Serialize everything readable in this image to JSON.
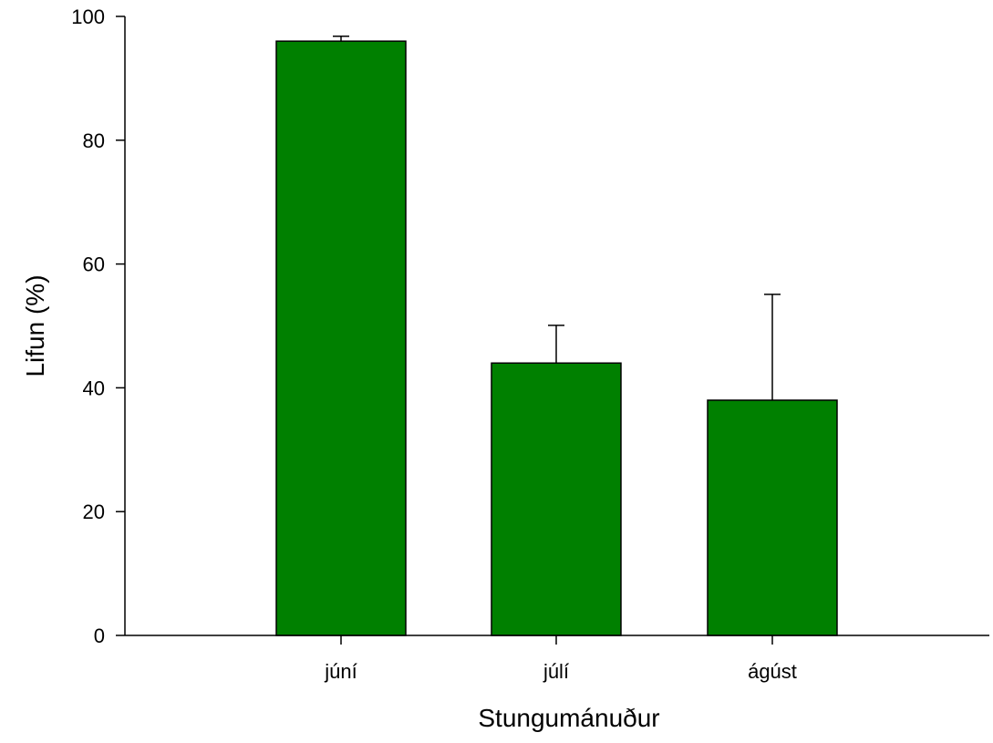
{
  "chart_data": {
    "type": "bar",
    "title": "",
    "xlabel": "Stungumánuður",
    "ylabel": "Lifun (%)",
    "categories": [
      "júní",
      "júlí",
      "ágúst"
    ],
    "values": [
      96,
      44,
      38
    ],
    "error_upper": [
      96.8,
      50.1,
      55.1
    ],
    "ylim": [
      0,
      100
    ],
    "yticks": [
      0,
      20,
      40,
      60,
      80,
      100
    ],
    "grid": false,
    "legend": "none",
    "bar_color": "#008000",
    "error_bars": "upper only"
  }
}
